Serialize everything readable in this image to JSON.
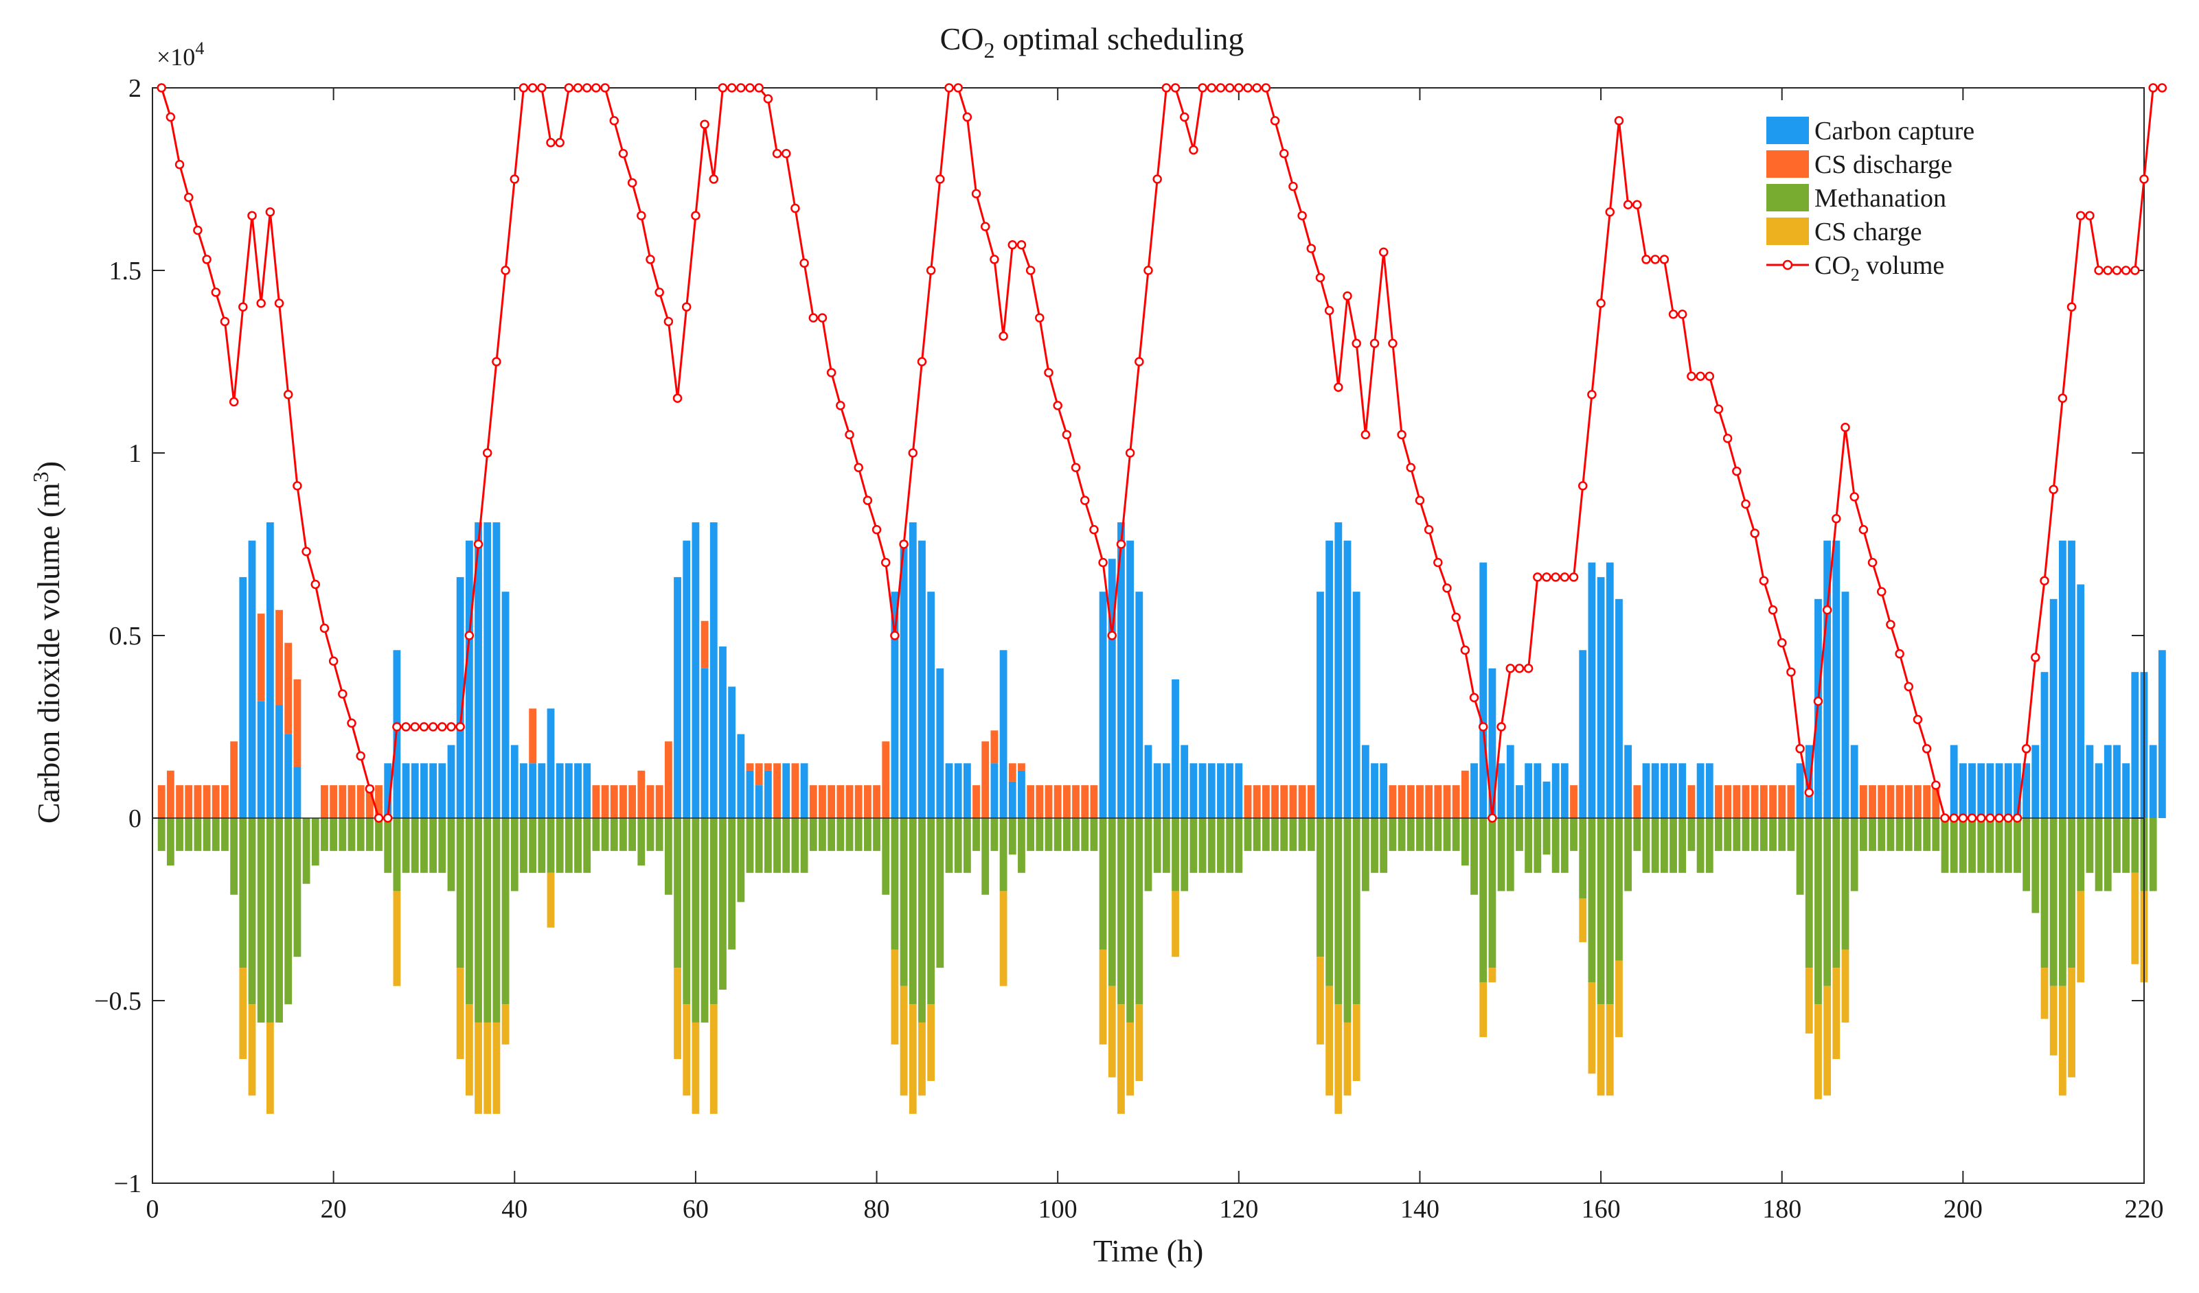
{
  "chart_data": {
    "type": "bar",
    "title": "CO",
    "title_sub": "2",
    "title_rest": " optimal scheduling",
    "xlabel": "Time (h)",
    "ylabel": "Carbon dioxide volume (m",
    "ylabel_sup": "3",
    "ylabel_end": ")",
    "y_multiplier": "×10",
    "y_multiplier_exp": "4",
    "xlim": [
      0,
      220
    ],
    "ylim": [
      -1,
      2
    ],
    "x_ticks": [
      0,
      20,
      40,
      60,
      80,
      100,
      120,
      140,
      160,
      180,
      200,
      220
    ],
    "x_tick_labels": [
      "0",
      "20",
      "40",
      "60",
      "80",
      "100",
      "120",
      "140",
      "160",
      "180",
      "200",
      "220"
    ],
    "y_ticks": [
      -1,
      -0.5,
      0,
      0.5,
      1,
      1.5,
      2
    ],
    "y_tick_labels": [
      "−1",
      "−0.5",
      "0",
      "0.5",
      "1",
      "1.5",
      "2"
    ],
    "grid": false,
    "legend_position": "top-right",
    "legend": [
      {
        "key": "capture",
        "label": "Carbon capture",
        "kind": "bar",
        "color": "#1E9BF0"
      },
      {
        "key": "discharge",
        "label": "CS discharge",
        "kind": "bar",
        "color": "#FF6A2B"
      },
      {
        "key": "methanation",
        "label": "Methanation",
        "kind": "bar",
        "color": "#77AC30"
      },
      {
        "key": "charge",
        "label": "CS charge",
        "kind": "bar",
        "color": "#EDB120"
      },
      {
        "key": "volume",
        "label": "CO",
        "label_sub": "2",
        "label_rest": " volume",
        "kind": "line",
        "color": "#FF0000"
      }
    ],
    "series": [
      {
        "name": "Carbon capture",
        "key": "capture",
        "color": "#1E9BF0",
        "values": [
          0,
          0,
          0,
          0,
          0,
          0,
          0,
          0,
          0,
          0.66,
          0.76,
          0.32,
          0.81,
          0.31,
          0.23,
          0.14,
          0,
          0,
          0,
          0,
          0,
          0,
          0,
          0,
          0,
          0.15,
          0.46,
          0.15,
          0.15,
          0.15,
          0.15,
          0.15,
          0.2,
          0.66,
          0.76,
          0.81,
          0.81,
          0.81,
          0.62,
          0.2,
          0.15,
          0.15,
          0.15,
          0.3,
          0.15,
          0.15,
          0.15,
          0.15,
          0,
          0,
          0,
          0,
          0,
          0,
          0,
          0,
          0,
          0.66,
          0.76,
          0.81,
          0.41,
          0.81,
          0.47,
          0.36,
          0.23,
          0.13,
          0.09,
          0.13,
          0,
          0.15,
          0,
          0.15,
          0,
          0,
          0,
          0,
          0,
          0,
          0,
          0,
          0,
          0.62,
          0.76,
          0.81,
          0.76,
          0.62,
          0.41,
          0.15,
          0.15,
          0.15,
          0,
          0,
          0.15,
          0.46,
          0.1,
          0.13,
          0,
          0,
          0,
          0,
          0,
          0,
          0,
          0,
          0.62,
          0.71,
          0.81,
          0.76,
          0.62,
          0.2,
          0.15,
          0.15,
          0.38,
          0.2,
          0.15,
          0.15,
          0.15,
          0.15,
          0.15,
          0.15,
          0,
          0,
          0,
          0,
          0,
          0,
          0,
          0,
          0.62,
          0.76,
          0.81,
          0.76,
          0.62,
          0.2,
          0.15,
          0.15,
          0,
          0,
          0,
          0,
          0,
          0,
          0,
          0,
          0,
          0.15,
          0.7,
          0.41,
          0.15,
          0.2,
          0.09,
          0.15,
          0.15,
          0.1,
          0.15,
          0.15,
          0,
          0.46,
          0.7,
          0.66,
          0.7,
          0.6,
          0.2,
          0,
          0.15,
          0.15,
          0.15,
          0.15,
          0.15,
          0,
          0.15,
          0.15,
          0,
          0,
          0,
          0,
          0,
          0,
          0,
          0,
          0,
          0.15,
          0.2,
          0.6,
          0.76,
          0.76,
          0.62,
          0.2,
          0,
          0,
          0,
          0,
          0,
          0,
          0,
          0,
          0,
          0,
          0.2,
          0.15,
          0.15,
          0.15,
          0.15,
          0.15,
          0.15,
          0.15,
          0.15,
          0.2,
          0.4,
          0.6,
          0.76,
          0.76,
          0.64,
          0.2,
          0.15,
          0.2,
          0.2,
          0.15,
          0.4,
          0.4,
          0.2,
          0.46
        ]
      },
      {
        "name": "CS discharge",
        "key": "discharge",
        "color": "#FF6A2B",
        "values": [
          0.09,
          0.13,
          0.09,
          0.09,
          0.09,
          0.09,
          0.09,
          0.09,
          0.21,
          0,
          0,
          0.24,
          0,
          0.26,
          0.25,
          0.24,
          0,
          0,
          0.09,
          0.09,
          0.09,
          0.09,
          0.09,
          0.09,
          0.09,
          0,
          0,
          0,
          0,
          0,
          0,
          0,
          0,
          0,
          0,
          0,
          0,
          0,
          0,
          0,
          0,
          0.15,
          0,
          0,
          0,
          0,
          0,
          0,
          0.09,
          0.09,
          0.09,
          0.09,
          0.09,
          0.13,
          0.09,
          0.09,
          0.21,
          0,
          0,
          0,
          0.13,
          0,
          0,
          0,
          0,
          0.02,
          0.06,
          0.02,
          0.15,
          0,
          0.15,
          0,
          0.09,
          0.09,
          0.09,
          0.09,
          0.09,
          0.09,
          0.09,
          0.09,
          0.21,
          0,
          0,
          0,
          0,
          0,
          0,
          0,
          0,
          0,
          0.09,
          0.21,
          0.09,
          0,
          0.05,
          0.02,
          0.09,
          0.09,
          0.09,
          0.09,
          0.09,
          0.09,
          0.09,
          0.09,
          0,
          0,
          0,
          0,
          0,
          0,
          0,
          0,
          0,
          0,
          0,
          0,
          0,
          0,
          0,
          0,
          0.09,
          0.09,
          0.09,
          0.09,
          0.09,
          0.09,
          0.09,
          0.09,
          0,
          0,
          0,
          0,
          0,
          0,
          0,
          0,
          0.09,
          0.09,
          0.09,
          0.09,
          0.09,
          0.09,
          0.09,
          0.09,
          0.13,
          0,
          0,
          0,
          0,
          0,
          0,
          0,
          0,
          0,
          0,
          0,
          0.09,
          0,
          0,
          0,
          0,
          0,
          0,
          0.09,
          0,
          0,
          0,
          0,
          0,
          0.09,
          0,
          0,
          0.09,
          0.09,
          0.09,
          0.09,
          0.09,
          0.09,
          0.09,
          0.09,
          0.09,
          0,
          0,
          0,
          0,
          0,
          0,
          0,
          0.09,
          0.09,
          0.09,
          0.09,
          0.09,
          0.09,
          0.09,
          0.09,
          0.09,
          0,
          0,
          0,
          0,
          0,
          0,
          0,
          0,
          0,
          0,
          0,
          0,
          0,
          0,
          0,
          0,
          0,
          0,
          0,
          0,
          0,
          0,
          0,
          0,
          0,
          0,
          0
        ]
      },
      {
        "name": "Methanation",
        "key": "methanation",
        "color": "#77AC30",
        "values": [
          -0.09,
          -0.13,
          -0.09,
          -0.09,
          -0.09,
          -0.09,
          -0.09,
          -0.09,
          -0.21,
          -0.41,
          -0.51,
          -0.56,
          -0.56,
          -0.56,
          -0.51,
          -0.38,
          -0.18,
          -0.13,
          -0.09,
          -0.09,
          -0.09,
          -0.09,
          -0.09,
          -0.09,
          -0.09,
          -0.15,
          -0.2,
          -0.15,
          -0.15,
          -0.15,
          -0.15,
          -0.15,
          -0.2,
          -0.41,
          -0.51,
          -0.56,
          -0.56,
          -0.56,
          -0.51,
          -0.2,
          -0.15,
          -0.15,
          -0.15,
          -0.15,
          -0.15,
          -0.15,
          -0.15,
          -0.15,
          -0.09,
          -0.09,
          -0.09,
          -0.09,
          -0.09,
          -0.13,
          -0.09,
          -0.09,
          -0.21,
          -0.41,
          -0.51,
          -0.56,
          -0.56,
          -0.51,
          -0.47,
          -0.36,
          -0.23,
          -0.15,
          -0.15,
          -0.15,
          -0.15,
          -0.15,
          -0.15,
          -0.15,
          -0.09,
          -0.09,
          -0.09,
          -0.09,
          -0.09,
          -0.09,
          -0.09,
          -0.09,
          -0.21,
          -0.36,
          -0.46,
          -0.51,
          -0.56,
          -0.51,
          -0.41,
          -0.15,
          -0.15,
          -0.15,
          -0.09,
          -0.21,
          -0.09,
          -0.2,
          -0.1,
          -0.15,
          -0.09,
          -0.09,
          -0.09,
          -0.09,
          -0.09,
          -0.09,
          -0.09,
          -0.09,
          -0.36,
          -0.46,
          -0.51,
          -0.56,
          -0.51,
          -0.2,
          -0.15,
          -0.15,
          -0.2,
          -0.2,
          -0.15,
          -0.15,
          -0.15,
          -0.15,
          -0.15,
          -0.15,
          -0.09,
          -0.09,
          -0.09,
          -0.09,
          -0.09,
          -0.09,
          -0.09,
          -0.09,
          -0.38,
          -0.46,
          -0.51,
          -0.56,
          -0.51,
          -0.2,
          -0.15,
          -0.15,
          -0.09,
          -0.09,
          -0.09,
          -0.09,
          -0.09,
          -0.09,
          -0.09,
          -0.09,
          -0.13,
          -0.21,
          -0.45,
          -0.41,
          -0.2,
          -0.2,
          -0.09,
          -0.15,
          -0.15,
          -0.1,
          -0.15,
          -0.15,
          -0.09,
          -0.22,
          -0.45,
          -0.51,
          -0.51,
          -0.39,
          -0.2,
          -0.09,
          -0.15,
          -0.15,
          -0.15,
          -0.15,
          -0.15,
          -0.09,
          -0.15,
          -0.15,
          -0.09,
          -0.09,
          -0.09,
          -0.09,
          -0.09,
          -0.09,
          -0.09,
          -0.09,
          -0.09,
          -0.21,
          -0.41,
          -0.51,
          -0.46,
          -0.41,
          -0.36,
          -0.2,
          -0.09,
          -0.09,
          -0.09,
          -0.09,
          -0.09,
          -0.09,
          -0.09,
          -0.09,
          -0.09,
          -0.15,
          -0.15,
          -0.15,
          -0.15,
          -0.15,
          -0.15,
          -0.15,
          -0.15,
          -0.15,
          -0.2,
          -0.26,
          -0.41,
          -0.46,
          -0.46,
          -0.41,
          -0.2,
          -0.15,
          -0.2,
          -0.2,
          -0.15,
          -0.15,
          -0.15,
          -0.2,
          -0.2
        ]
      },
      {
        "name": "CS charge",
        "key": "charge",
        "color": "#EDB120",
        "values": [
          0,
          0,
          0,
          0,
          0,
          0,
          0,
          0,
          0,
          -0.25,
          -0.25,
          0,
          -0.25,
          0,
          0,
          0,
          0,
          0,
          0,
          0,
          0,
          0,
          0,
          0,
          0,
          0,
          -0.26,
          0,
          0,
          0,
          0,
          0,
          0,
          -0.25,
          -0.25,
          -0.25,
          -0.25,
          -0.25,
          -0.11,
          0,
          0,
          0,
          0,
          -0.15,
          0,
          0,
          0,
          0,
          0,
          0,
          0,
          0,
          0,
          0,
          0,
          0,
          0,
          -0.25,
          -0.25,
          -0.25,
          0,
          -0.3,
          0,
          0,
          0,
          0,
          0,
          0,
          0,
          0,
          0,
          0,
          0,
          0,
          0,
          0,
          0,
          0,
          0,
          0,
          0,
          -0.26,
          -0.3,
          -0.3,
          -0.2,
          -0.21,
          0,
          0,
          0,
          0,
          0,
          0,
          0,
          -0.26,
          0,
          0,
          0,
          0,
          0,
          0,
          0,
          0,
          0,
          0,
          -0.26,
          -0.25,
          -0.3,
          -0.2,
          -0.21,
          0,
          0,
          0,
          -0.18,
          0,
          0,
          0,
          0,
          0,
          0,
          0,
          0,
          0,
          0,
          0,
          0,
          0,
          0,
          0,
          -0.24,
          -0.3,
          -0.3,
          -0.2,
          -0.21,
          0,
          0,
          0,
          0,
          0,
          0,
          0,
          0,
          0,
          0,
          0,
          0,
          0,
          -0.15,
          -0.04,
          0,
          0,
          0,
          0,
          0,
          0,
          0,
          0,
          0,
          -0.12,
          -0.25,
          -0.25,
          -0.25,
          -0.21,
          0,
          0,
          0,
          0,
          0,
          0,
          0,
          0,
          0,
          0,
          0,
          0,
          0,
          0,
          0,
          0,
          0,
          0,
          0,
          0,
          -0.18,
          -0.26,
          -0.3,
          -0.25,
          -0.2,
          0,
          0,
          0,
          0,
          0,
          0,
          0,
          0,
          0,
          0,
          0,
          0,
          0,
          0,
          0,
          0,
          0,
          0,
          0,
          0,
          0,
          -0.14,
          -0.19,
          -0.3,
          -0.3,
          -0.25,
          0,
          0,
          0,
          0,
          0,
          -0.25,
          -0.25,
          0,
          -0.26
        ]
      },
      {
        "name": "CO2 volume",
        "key": "volume",
        "color": "#FF0000",
        "type": "line",
        "values": [
          2,
          1.92,
          1.79,
          1.7,
          1.61,
          1.53,
          1.44,
          1.36,
          1.14,
          1.4,
          1.65,
          1.41,
          1.66,
          1.41,
          1.16,
          0.91,
          0.73,
          0.64,
          0.52,
          0.43,
          0.34,
          0.26,
          0.17,
          0.08,
          0,
          0,
          0.25,
          0.25,
          0.25,
          0.25,
          0.25,
          0.25,
          0.25,
          0.25,
          0.5,
          0.75,
          1,
          1.25,
          1.5,
          1.75,
          2,
          2,
          2,
          1.85,
          1.85,
          2,
          2,
          2,
          2,
          2,
          1.91,
          1.82,
          1.74,
          1.65,
          1.53,
          1.44,
          1.36,
          1.15,
          1.4,
          1.65,
          1.9,
          1.75,
          2,
          2,
          2,
          2,
          2,
          1.97,
          1.82,
          1.82,
          1.67,
          1.52,
          1.37,
          1.37,
          1.22,
          1.13,
          1.05,
          0.96,
          0.87,
          0.79,
          0.7,
          0.5,
          0.75,
          1,
          1.25,
          1.5,
          1.75,
          2,
          2,
          1.92,
          1.71,
          1.62,
          1.53,
          1.32,
          1.57,
          1.57,
          1.5,
          1.37,
          1.22,
          1.13,
          1.05,
          0.96,
          0.87,
          0.79,
          0.7,
          0.5,
          0.75,
          1,
          1.25,
          1.5,
          1.75,
          2,
          2,
          1.92,
          1.83,
          2,
          2,
          2,
          2,
          2,
          2,
          2,
          2,
          1.91,
          1.82,
          1.73,
          1.65,
          1.56,
          1.48,
          1.39,
          1.18,
          1.43,
          1.3,
          1.05,
          1.3,
          1.55,
          1.3,
          1.05,
          0.96,
          0.87,
          0.79,
          0.7,
          0.63,
          0.55,
          0.46,
          0.33,
          0.25,
          0,
          0.25,
          0.41,
          0.41,
          0.41,
          0.66,
          0.66,
          0.66,
          0.66,
          0.66,
          0.91,
          1.16,
          1.41,
          1.66,
          1.91,
          1.68,
          1.68,
          1.53,
          1.53,
          1.53,
          1.38,
          1.38,
          1.21,
          1.21,
          1.21,
          1.12,
          1.04,
          0.95,
          0.86,
          0.78,
          0.65,
          0.57,
          0.48,
          0.4,
          0.19,
          0.07,
          0.32,
          0.57,
          0.82,
          1.07,
          0.88,
          0.79,
          0.7,
          0.62,
          0.53,
          0.45,
          0.36,
          0.27,
          0.19,
          0.09,
          0,
          0,
          0,
          0,
          0,
          0,
          0,
          0,
          0,
          0.19,
          0.44,
          0.65,
          0.9,
          1.15,
          1.4,
          1.65,
          1.65,
          1.5,
          1.5,
          1.5,
          1.5,
          1.5,
          1.75,
          2,
          2
        ]
      }
    ]
  }
}
